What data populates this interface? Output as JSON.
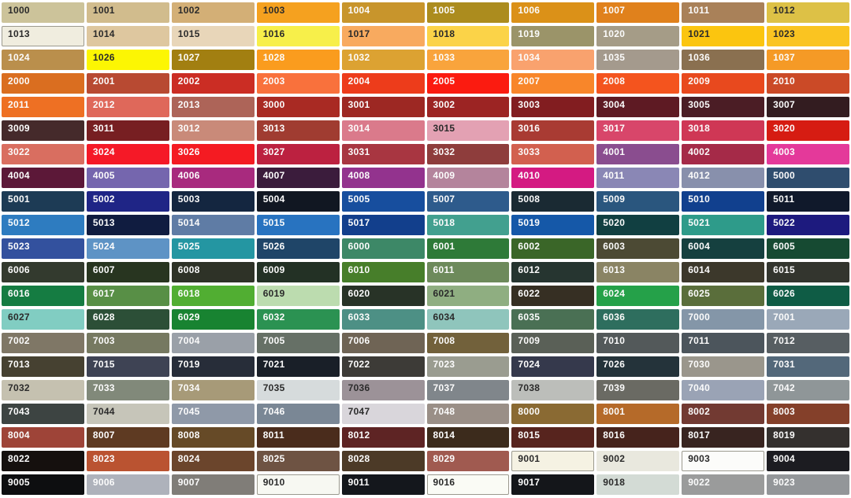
{
  "page": {
    "background": "#FFFFFF",
    "border_color": "#9B998E",
    "label_colors": {
      "dark": "#2B2B2B",
      "light": "#FBFBFB"
    },
    "grid": {
      "columns": 10,
      "rows": 21
    }
  },
  "swatches": [
    {
      "code": "1000",
      "hex": "#CCC39A",
      "text": "dark"
    },
    {
      "code": "1001",
      "hex": "#D1BC8D",
      "text": "dark"
    },
    {
      "code": "1002",
      "hex": "#D3AF76",
      "text": "dark"
    },
    {
      "code": "1003",
      "hex": "#F5A11F",
      "text": "dark"
    },
    {
      "code": "1004",
      "hex": "#C8952C",
      "text": "light"
    },
    {
      "code": "1005",
      "hex": "#AC8C1E",
      "text": "light"
    },
    {
      "code": "1006",
      "hex": "#DB9118",
      "text": "light"
    },
    {
      "code": "1007",
      "hex": "#E0811C",
      "text": "light"
    },
    {
      "code": "1011",
      "hex": "#A98159",
      "text": "light"
    },
    {
      "code": "1012",
      "hex": "#DDC146",
      "text": "dark"
    },
    {
      "code": "1013",
      "hex": "#F0EDDF",
      "text": "dark",
      "border": true
    },
    {
      "code": "1014",
      "hex": "#DEC79F",
      "text": "dark"
    },
    {
      "code": "1015",
      "hex": "#E8D6B9",
      "text": "dark"
    },
    {
      "code": "1016",
      "hex": "#F7EF4A",
      "text": "dark"
    },
    {
      "code": "1017",
      "hex": "#F8AA5F",
      "text": "dark"
    },
    {
      "code": "1018",
      "hex": "#FBD348",
      "text": "dark"
    },
    {
      "code": "1019",
      "hex": "#9B9469",
      "text": "light"
    },
    {
      "code": "1020",
      "hex": "#A59C87",
      "text": "light"
    },
    {
      "code": "1021",
      "hex": "#FBC50F",
      "text": "dark"
    },
    {
      "code": "1023",
      "hex": "#FAC421",
      "text": "dark"
    },
    {
      "code": "1024",
      "hex": "#BA8F4C",
      "text": "light"
    },
    {
      "code": "1026",
      "hex": "#FCF603",
      "text": "dark"
    },
    {
      "code": "1027",
      "hex": "#A27F11",
      "text": "light"
    },
    {
      "code": "1028",
      "hex": "#FA9C1E",
      "text": "light"
    },
    {
      "code": "1032",
      "hex": "#DCA232",
      "text": "light"
    },
    {
      "code": "1033",
      "hex": "#F9A43C",
      "text": "light"
    },
    {
      "code": "1034",
      "hex": "#F9A26E",
      "text": "light"
    },
    {
      "code": "1035",
      "hex": "#A49A8D",
      "text": "light"
    },
    {
      "code": "1036",
      "hex": "#8A7050",
      "text": "light"
    },
    {
      "code": "1037",
      "hex": "#F59A26",
      "text": "light"
    },
    {
      "code": "2000",
      "hex": "#DA6E20",
      "text": "light"
    },
    {
      "code": "2001",
      "hex": "#B84A32",
      "text": "light"
    },
    {
      "code": "2002",
      "hex": "#CB2D24",
      "text": "light"
    },
    {
      "code": "2003",
      "hex": "#F9713C",
      "text": "light"
    },
    {
      "code": "2004",
      "hex": "#ED3C1B",
      "text": "light"
    },
    {
      "code": "2005",
      "hex": "#FB1B10",
      "text": "light"
    },
    {
      "code": "2007",
      "hex": "#F8862A",
      "text": "light"
    },
    {
      "code": "2008",
      "hex": "#F4541E",
      "text": "light"
    },
    {
      "code": "2009",
      "hex": "#E8491E",
      "text": "light"
    },
    {
      "code": "2010",
      "hex": "#CB4A27",
      "text": "light"
    },
    {
      "code": "2011",
      "hex": "#EE7023",
      "text": "light"
    },
    {
      "code": "2012",
      "hex": "#DF685A",
      "text": "light"
    },
    {
      "code": "2013",
      "hex": "#AD6458",
      "text": "light"
    },
    {
      "code": "3000",
      "hex": "#A92A23",
      "text": "light"
    },
    {
      "code": "3001",
      "hex": "#9D2823",
      "text": "light"
    },
    {
      "code": "3002",
      "hex": "#9C2423",
      "text": "light"
    },
    {
      "code": "3003",
      "hex": "#821D20",
      "text": "light"
    },
    {
      "code": "3004",
      "hex": "#5E1A23",
      "text": "light"
    },
    {
      "code": "3005",
      "hex": "#4B1D25",
      "text": "light"
    },
    {
      "code": "3007",
      "hex": "#331C20",
      "text": "light"
    },
    {
      "code": "3009",
      "hex": "#452A2B",
      "text": "light"
    },
    {
      "code": "3011",
      "hex": "#771F22",
      "text": "light"
    },
    {
      "code": "3012",
      "hex": "#C98A79",
      "text": "light"
    },
    {
      "code": "3013",
      "hex": "#A03C31",
      "text": "light"
    },
    {
      "code": "3014",
      "hex": "#DA7A8B",
      "text": "light"
    },
    {
      "code": "3015",
      "hex": "#E3A1B3",
      "text": "dark"
    },
    {
      "code": "3016",
      "hex": "#A93B33",
      "text": "light"
    },
    {
      "code": "3017",
      "hex": "#D8466A",
      "text": "light"
    },
    {
      "code": "3018",
      "hex": "#CF3755",
      "text": "light"
    },
    {
      "code": "3020",
      "hex": "#D61C12",
      "text": "light"
    },
    {
      "code": "3022",
      "hex": "#D96E60",
      "text": "light"
    },
    {
      "code": "3024",
      "hex": "#F51927",
      "text": "light"
    },
    {
      "code": "3026",
      "hex": "#F41B22",
      "text": "light"
    },
    {
      "code": "3027",
      "hex": "#BC2140",
      "text": "light"
    },
    {
      "code": "3031",
      "hex": "#A83641",
      "text": "light"
    },
    {
      "code": "3032",
      "hex": "#8E3D3C",
      "text": "light"
    },
    {
      "code": "3033",
      "hex": "#D2604F",
      "text": "light"
    },
    {
      "code": "4001",
      "hex": "#8A4D8F",
      "text": "light"
    },
    {
      "code": "4002",
      "hex": "#A52A48",
      "text": "light"
    },
    {
      "code": "4003",
      "hex": "#E4399A",
      "text": "light"
    },
    {
      "code": "4004",
      "hex": "#5C1838",
      "text": "light"
    },
    {
      "code": "4005",
      "hex": "#7566AE",
      "text": "light"
    },
    {
      "code": "4006",
      "hex": "#A82A7E",
      "text": "light"
    },
    {
      "code": "4007",
      "hex": "#3B1C3C",
      "text": "light"
    },
    {
      "code": "4008",
      "hex": "#93338E",
      "text": "light"
    },
    {
      "code": "4009",
      "hex": "#B4849C",
      "text": "light"
    },
    {
      "code": "4010",
      "hex": "#D41A82",
      "text": "light"
    },
    {
      "code": "4011",
      "hex": "#8A87B5",
      "text": "light"
    },
    {
      "code": "4012",
      "hex": "#8890AC",
      "text": "light"
    },
    {
      "code": "5000",
      "hex": "#2F4D6E",
      "text": "light"
    },
    {
      "code": "5001",
      "hex": "#1D3B55",
      "text": "light"
    },
    {
      "code": "5002",
      "hex": "#1F2586",
      "text": "light"
    },
    {
      "code": "5003",
      "hex": "#142640",
      "text": "light"
    },
    {
      "code": "5004",
      "hex": "#111722",
      "text": "light"
    },
    {
      "code": "5005",
      "hex": "#174E9E",
      "text": "light"
    },
    {
      "code": "5007",
      "hex": "#2E5B8C",
      "text": "light"
    },
    {
      "code": "5008",
      "hex": "#1A2A33",
      "text": "light"
    },
    {
      "code": "5009",
      "hex": "#2A567E",
      "text": "light"
    },
    {
      "code": "5010",
      "hex": "#11408E",
      "text": "light"
    },
    {
      "code": "5011",
      "hex": "#10192B",
      "text": "light"
    },
    {
      "code": "5012",
      "hex": "#2E7CC0",
      "text": "light"
    },
    {
      "code": "5013",
      "hex": "#101C40",
      "text": "light"
    },
    {
      "code": "5014",
      "hex": "#5F7CA5",
      "text": "light"
    },
    {
      "code": "5015",
      "hex": "#2873C0",
      "text": "light"
    },
    {
      "code": "5017",
      "hex": "#123F8C",
      "text": "light"
    },
    {
      "code": "5018",
      "hex": "#42A08F",
      "text": "light"
    },
    {
      "code": "5019",
      "hex": "#1558A8",
      "text": "light"
    },
    {
      "code": "5020",
      "hex": "#113F41",
      "text": "light"
    },
    {
      "code": "5021",
      "hex": "#2E9B8A",
      "text": "light"
    },
    {
      "code": "5022",
      "hex": "#1D1A7E",
      "text": "light"
    },
    {
      "code": "5023",
      "hex": "#33519E",
      "text": "light"
    },
    {
      "code": "5024",
      "hex": "#5E93C5",
      "text": "light"
    },
    {
      "code": "5025",
      "hex": "#2496A2",
      "text": "light"
    },
    {
      "code": "5026",
      "hex": "#1F4568",
      "text": "light"
    },
    {
      "code": "6000",
      "hex": "#3D8867",
      "text": "light"
    },
    {
      "code": "6001",
      "hex": "#2E7A38",
      "text": "light"
    },
    {
      "code": "6002",
      "hex": "#3A6628",
      "text": "light"
    },
    {
      "code": "6003",
      "hex": "#4C4A34",
      "text": "light"
    },
    {
      "code": "6004",
      "hex": "#15403F",
      "text": "light"
    },
    {
      "code": "6005",
      "hex": "#164A32",
      "text": "light"
    },
    {
      "code": "6006",
      "hex": "#333A2E",
      "text": "light"
    },
    {
      "code": "6007",
      "hex": "#283520",
      "text": "light"
    },
    {
      "code": "6008",
      "hex": "#2E3227",
      "text": "light"
    },
    {
      "code": "6009",
      "hex": "#233125",
      "text": "light"
    },
    {
      "code": "6010",
      "hex": "#477E2A",
      "text": "light"
    },
    {
      "code": "6011",
      "hex": "#6D8A5B",
      "text": "light"
    },
    {
      "code": "6012",
      "hex": "#263530",
      "text": "light"
    },
    {
      "code": "6013",
      "hex": "#8A8464",
      "text": "light"
    },
    {
      "code": "6014",
      "hex": "#3C382B",
      "text": "light"
    },
    {
      "code": "6015",
      "hex": "#33352E",
      "text": "light"
    },
    {
      "code": "6016",
      "hex": "#157C42",
      "text": "light"
    },
    {
      "code": "6017",
      "hex": "#588F46",
      "text": "light"
    },
    {
      "code": "6018",
      "hex": "#51AE32",
      "text": "light"
    },
    {
      "code": "6019",
      "hex": "#BCDCAF",
      "text": "dark"
    },
    {
      "code": "6020",
      "hex": "#283327",
      "text": "light"
    },
    {
      "code": "6021",
      "hex": "#8FAE81",
      "text": "dark"
    },
    {
      "code": "6022",
      "hex": "#362F23",
      "text": "light"
    },
    {
      "code": "6024",
      "hex": "#25A149",
      "text": "light"
    },
    {
      "code": "6025",
      "hex": "#5A6E3B",
      "text": "light"
    },
    {
      "code": "6026",
      "hex": "#0F5C45",
      "text": "light"
    },
    {
      "code": "6027",
      "hex": "#81CDC2",
      "text": "dark"
    },
    {
      "code": "6028",
      "hex": "#2C4F37",
      "text": "light"
    },
    {
      "code": "6029",
      "hex": "#188331",
      "text": "light"
    },
    {
      "code": "6032",
      "hex": "#2B9252",
      "text": "light"
    },
    {
      "code": "6033",
      "hex": "#4D9085",
      "text": "light"
    },
    {
      "code": "6034",
      "hex": "#8FC5BC",
      "text": "dark"
    },
    {
      "code": "6035",
      "hex": "#4A7054",
      "text": "light"
    },
    {
      "code": "6036",
      "hex": "#2E6E5E",
      "text": "light"
    },
    {
      "code": "7000",
      "hex": "#8496A8",
      "text": "light"
    },
    {
      "code": "7001",
      "hex": "#9AA8B8",
      "text": "light"
    },
    {
      "code": "7002",
      "hex": "#7F7766",
      "text": "light"
    },
    {
      "code": "7003",
      "hex": "#767961",
      "text": "light"
    },
    {
      "code": "7004",
      "hex": "#9AA0A8",
      "text": "light"
    },
    {
      "code": "7005",
      "hex": "#667066",
      "text": "light"
    },
    {
      "code": "7006",
      "hex": "#6F6455",
      "text": "light"
    },
    {
      "code": "7008",
      "hex": "#72613B",
      "text": "light"
    },
    {
      "code": "7009",
      "hex": "#5A6057",
      "text": "light"
    },
    {
      "code": "7010",
      "hex": "#53595A",
      "text": "light"
    },
    {
      "code": "7011",
      "hex": "#4C555C",
      "text": "light"
    },
    {
      "code": "7012",
      "hex": "#575E62",
      "text": "light"
    },
    {
      "code": "7013",
      "hex": "#464131",
      "text": "light"
    },
    {
      "code": "7015",
      "hex": "#3E4354",
      "text": "light"
    },
    {
      "code": "7019",
      "hex": "#272D39",
      "text": "light"
    },
    {
      "code": "7021",
      "hex": "#191F28",
      "text": "light"
    },
    {
      "code": "7022",
      "hex": "#3D3B37",
      "text": "light"
    },
    {
      "code": "7023",
      "hex": "#9A9C90",
      "text": "light"
    },
    {
      "code": "7024",
      "hex": "#35394C",
      "text": "light"
    },
    {
      "code": "7026",
      "hex": "#24333A",
      "text": "light"
    },
    {
      "code": "7030",
      "hex": "#9A968C",
      "text": "light"
    },
    {
      "code": "7031",
      "hex": "#53687A",
      "text": "light"
    },
    {
      "code": "7032",
      "hex": "#C5C1B0",
      "text": "dark"
    },
    {
      "code": "7033",
      "hex": "#81897A",
      "text": "light"
    },
    {
      "code": "7034",
      "hex": "#A79A78",
      "text": "light"
    },
    {
      "code": "7035",
      "hex": "#D6DBDC",
      "text": "dark"
    },
    {
      "code": "7036",
      "hex": "#9C9298",
      "text": "dark"
    },
    {
      "code": "7037",
      "hex": "#80868B",
      "text": "light"
    },
    {
      "code": "7038",
      "hex": "#BCBEBA",
      "text": "dark"
    },
    {
      "code": "7039",
      "hex": "#6A6A63",
      "text": "light"
    },
    {
      "code": "7040",
      "hex": "#9AA3B5",
      "text": "light"
    },
    {
      "code": "7042",
      "hex": "#8F9698",
      "text": "light"
    },
    {
      "code": "7043",
      "hex": "#3D4442",
      "text": "light"
    },
    {
      "code": "7044",
      "hex": "#C6C5B9",
      "text": "dark"
    },
    {
      "code": "7045",
      "hex": "#8F99A8",
      "text": "light"
    },
    {
      "code": "7046",
      "hex": "#7A8795",
      "text": "light"
    },
    {
      "code": "7047",
      "hex": "#D9D6DB",
      "text": "dark"
    },
    {
      "code": "7048",
      "hex": "#9A8F87",
      "text": "light"
    },
    {
      "code": "8000",
      "hex": "#8A6A33",
      "text": "light"
    },
    {
      "code": "8001",
      "hex": "#B56A29",
      "text": "light"
    },
    {
      "code": "8002",
      "hex": "#723A32",
      "text": "light"
    },
    {
      "code": "8003",
      "hex": "#84402A",
      "text": "light"
    },
    {
      "code": "8004",
      "hex": "#9E4438",
      "text": "light"
    },
    {
      "code": "8007",
      "hex": "#5E3A22",
      "text": "light"
    },
    {
      "code": "8008",
      "hex": "#664A27",
      "text": "light"
    },
    {
      "code": "8011",
      "hex": "#4A2C1C",
      "text": "light"
    },
    {
      "code": "8012",
      "hex": "#5E2424",
      "text": "light"
    },
    {
      "code": "8014",
      "hex": "#3C2B1C",
      "text": "light"
    },
    {
      "code": "8015",
      "hex": "#57241E",
      "text": "light"
    },
    {
      "code": "8016",
      "hex": "#46231C",
      "text": "light"
    },
    {
      "code": "8017",
      "hex": "#382420",
      "text": "light"
    },
    {
      "code": "8019",
      "hex": "#34302E",
      "text": "light"
    },
    {
      "code": "8022",
      "hex": "#15100E",
      "text": "light"
    },
    {
      "code": "8023",
      "hex": "#BA5331",
      "text": "light"
    },
    {
      "code": "8024",
      "hex": "#6B452C",
      "text": "light"
    },
    {
      "code": "8025",
      "hex": "#6E5343",
      "text": "light"
    },
    {
      "code": "8028",
      "hex": "#4C3A27",
      "text": "light"
    },
    {
      "code": "8029",
      "hex": "#A05A50",
      "text": "light"
    },
    {
      "code": "9001",
      "hex": "#F5F2E3",
      "text": "dark",
      "border": true
    },
    {
      "code": "9002",
      "hex": "#E9E8DE",
      "text": "dark"
    },
    {
      "code": "9003",
      "hex": "#FCFCFA",
      "text": "dark",
      "border": true
    },
    {
      "code": "9004",
      "hex": "#1C1C21",
      "text": "light"
    },
    {
      "code": "9005",
      "hex": "#0D0E10",
      "text": "light"
    },
    {
      "code": "9006",
      "hex": "#AEB2BB",
      "text": "light"
    },
    {
      "code": "9007",
      "hex": "#807D78",
      "text": "light"
    },
    {
      "code": "9010",
      "hex": "#F7F8F2",
      "text": "dark",
      "border": true
    },
    {
      "code": "9011",
      "hex": "#14171C",
      "text": "light"
    },
    {
      "code": "9016",
      "hex": "#FAFBF5",
      "text": "dark",
      "border": true
    },
    {
      "code": "9017",
      "hex": "#14161A",
      "text": "light"
    },
    {
      "code": "9018",
      "hex": "#D3DBD5",
      "text": "dark"
    },
    {
      "code": "9022",
      "hex": "#9A9B9B",
      "text": "light"
    },
    {
      "code": "9023",
      "hex": "#939699",
      "text": "light"
    }
  ]
}
